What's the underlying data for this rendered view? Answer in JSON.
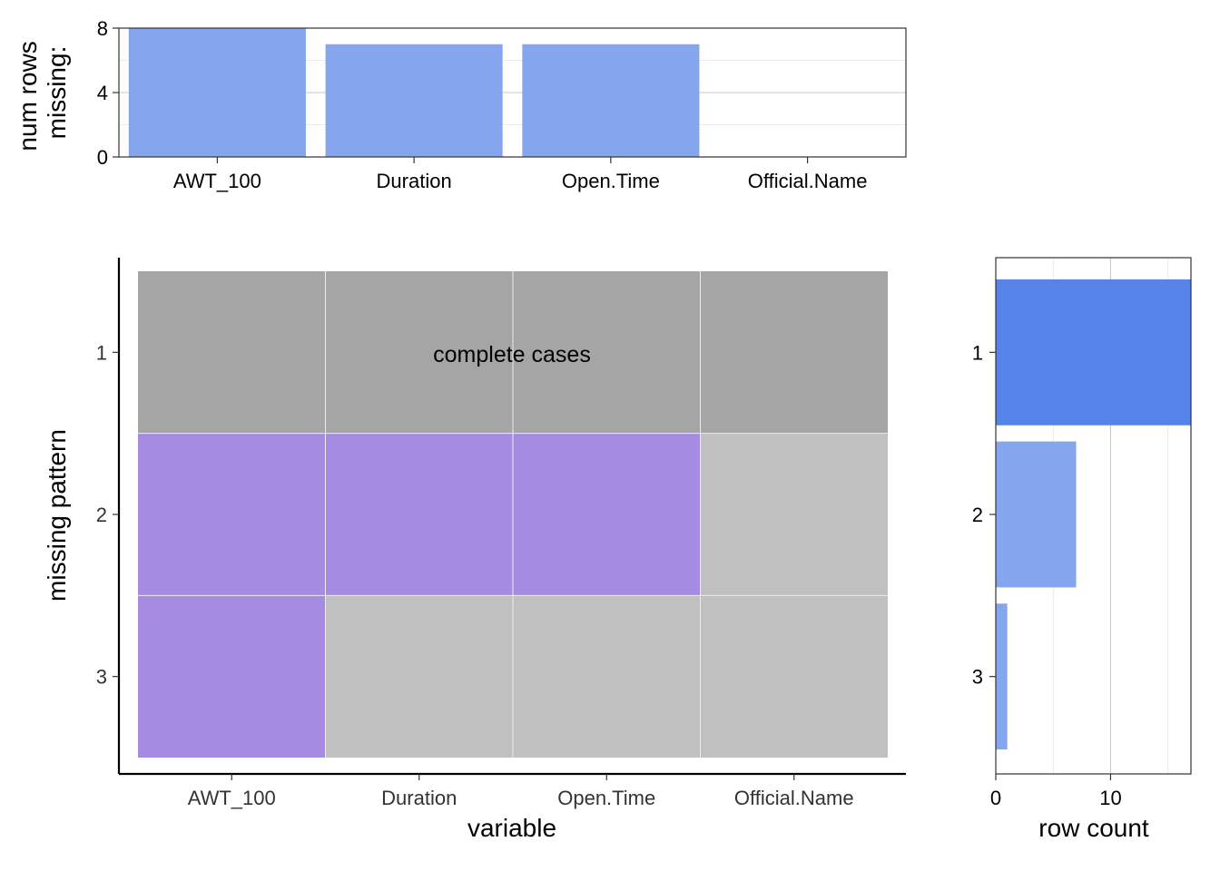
{
  "chart_data": [
    {
      "type": "bar",
      "panel": "top",
      "categories": [
        "AWT_100",
        "Duration",
        "Open.Time",
        "Official.Name"
      ],
      "values": [
        8,
        7,
        7,
        0
      ],
      "ylabel_lines": [
        "num rows",
        "missing:"
      ],
      "y_ticks": [
        "0",
        "4",
        "8"
      ],
      "ylim": [
        0,
        8
      ],
      "grid": true,
      "bar_color": "#85a5ee"
    },
    {
      "type": "heatmap",
      "panel": "main",
      "x_categories": [
        "AWT_100",
        "Duration",
        "Open.Time",
        "Official.Name"
      ],
      "y_categories": [
        "1",
        "2",
        "3"
      ],
      "xlabel": "variable",
      "ylabel": "missing pattern",
      "cells": [
        [
          "complete",
          "complete",
          "complete",
          "complete"
        ],
        [
          "missing",
          "missing",
          "missing",
          "present"
        ],
        [
          "missing",
          "present",
          "present",
          "present"
        ]
      ],
      "annotation": "complete cases",
      "colors": {
        "complete": "#a5a5a5",
        "missing": "#a68be3",
        "present": "#c0c0c0"
      }
    },
    {
      "type": "bar",
      "orientation": "horizontal",
      "panel": "right",
      "categories": [
        "1",
        "2",
        "3"
      ],
      "values": [
        17,
        7,
        1
      ],
      "xlabel": "row count",
      "x_ticks": [
        "0",
        "10"
      ],
      "xlim": [
        0,
        17
      ],
      "grid": true,
      "bar_colors": [
        "#5583e8",
        "#85a5ee",
        "#85a5ee"
      ]
    }
  ]
}
